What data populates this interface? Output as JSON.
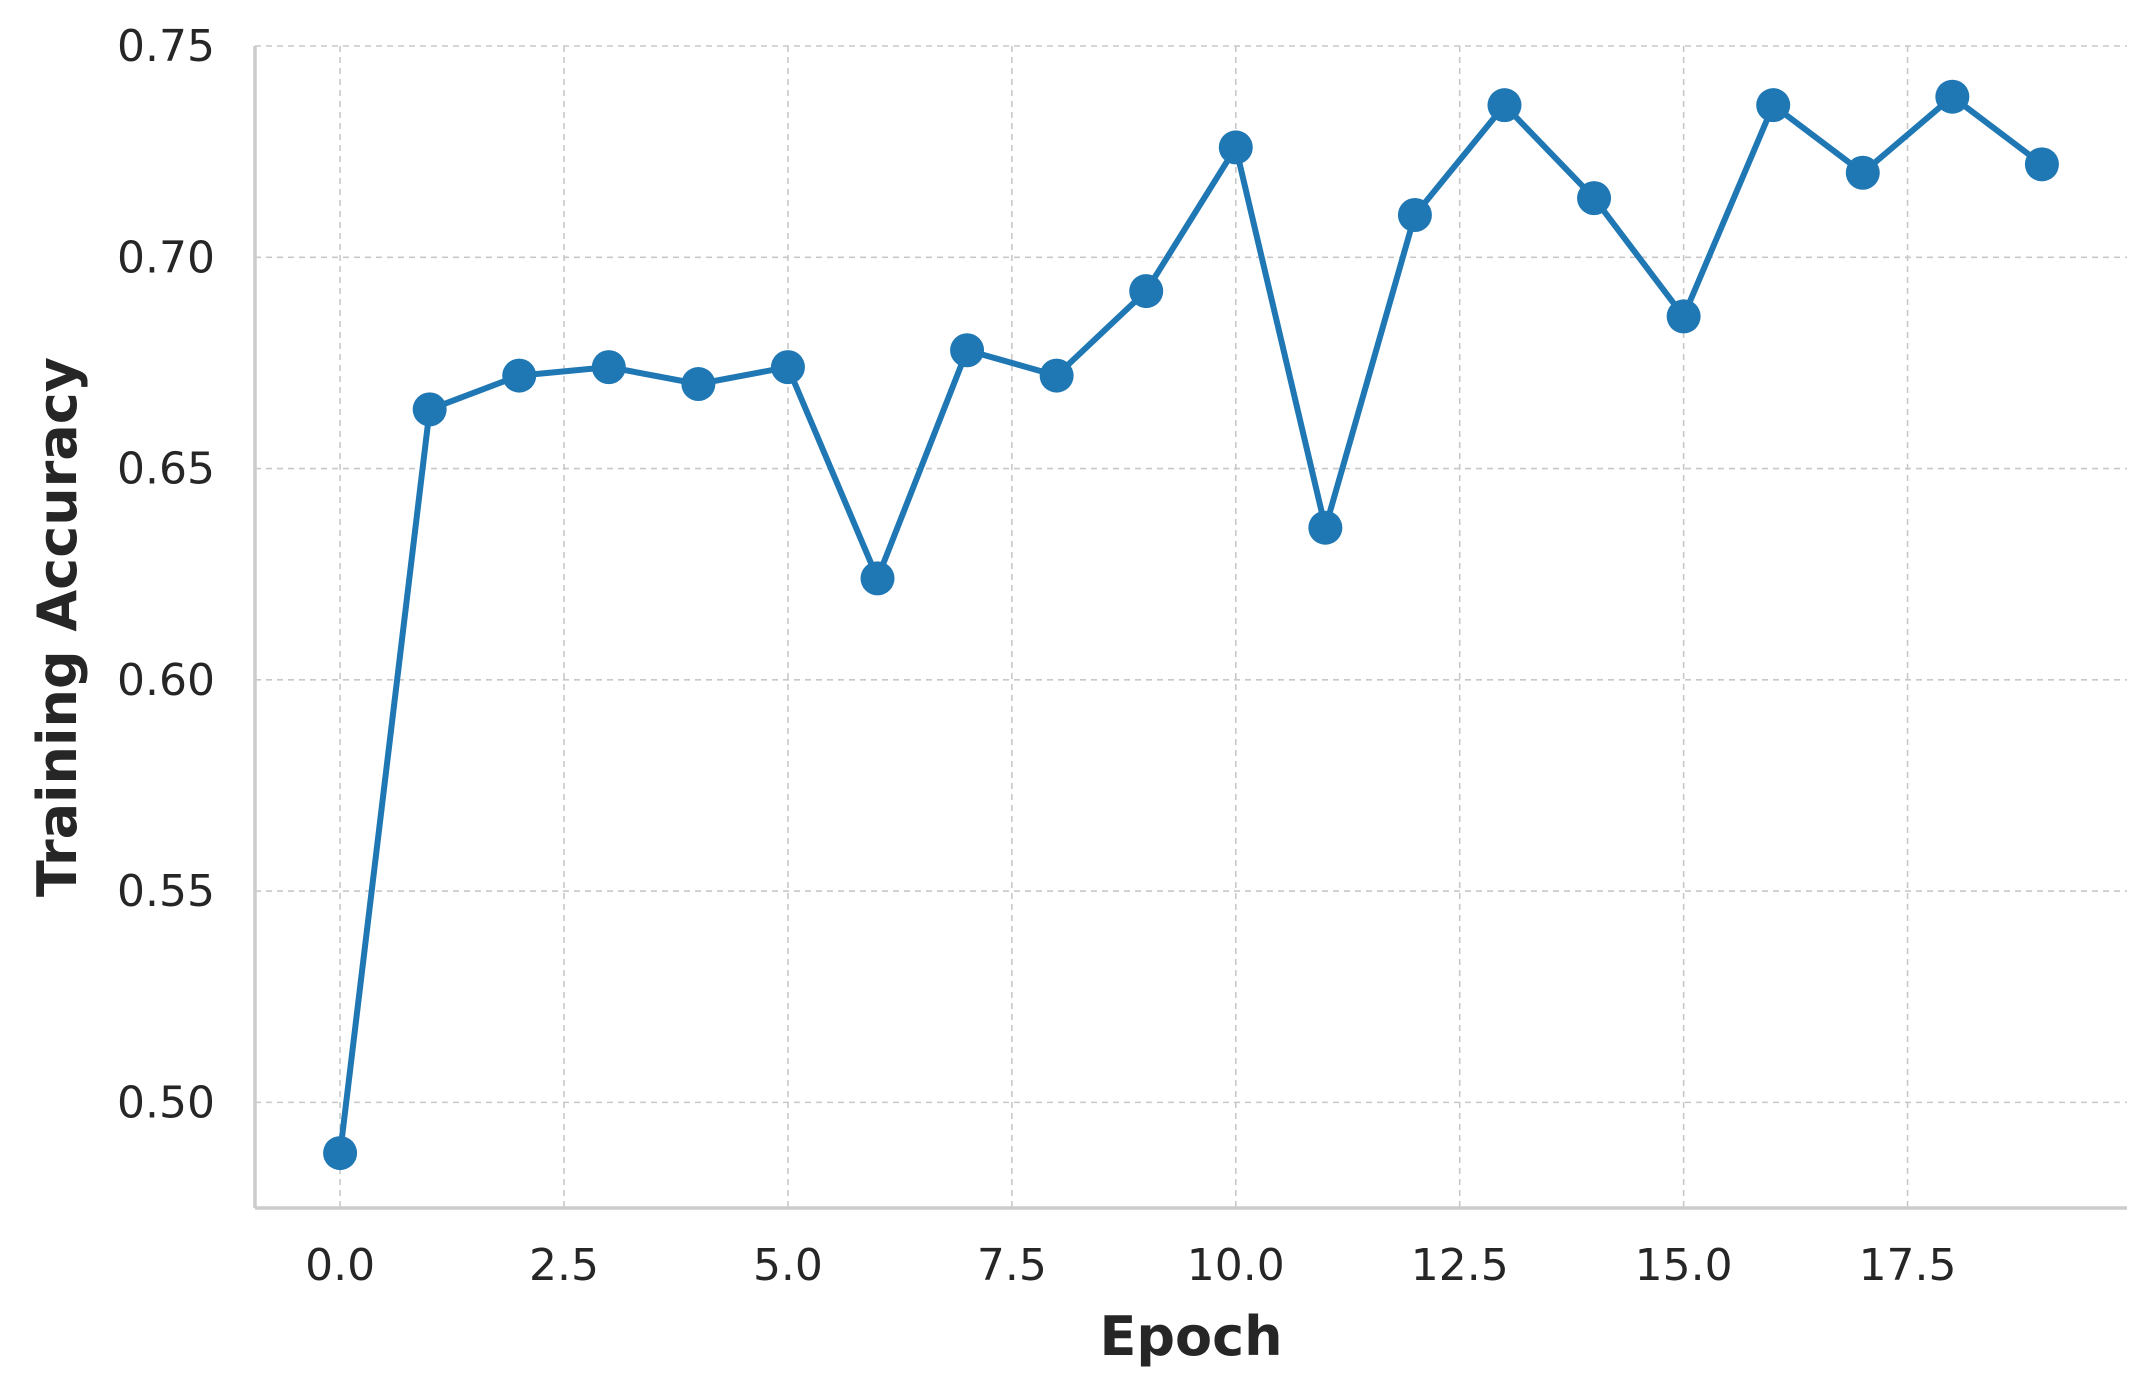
{
  "chart_data": {
    "type": "line",
    "title": "",
    "xlabel": "Epoch",
    "ylabel": "Training Accuracy",
    "xlim": [
      -0.95,
      19.95
    ],
    "ylim": [
      0.475,
      0.75
    ],
    "x_ticks": [
      0.0,
      2.5,
      5.0,
      7.5,
      10.0,
      12.5,
      15.0,
      17.5
    ],
    "x_tick_labels": [
      "0.0",
      "2.5",
      "5.0",
      "7.5",
      "10.0",
      "12.5",
      "15.0",
      "17.5"
    ],
    "y_ticks": [
      0.5,
      0.55,
      0.6,
      0.65,
      0.7,
      0.75
    ],
    "y_tick_labels": [
      "0.50",
      "0.55",
      "0.60",
      "0.65",
      "0.70",
      "0.75"
    ],
    "grid": true,
    "series": [
      {
        "color": "#1f77b4",
        "marker": "circle",
        "x": [
          0,
          1,
          2,
          3,
          4,
          5,
          6,
          7,
          8,
          9,
          10,
          11,
          12,
          13,
          14,
          15,
          16,
          17,
          18,
          19
        ],
        "values": [
          0.488,
          0.664,
          0.672,
          0.674,
          0.67,
          0.674,
          0.624,
          0.678,
          0.672,
          0.692,
          0.726,
          0.636,
          0.71,
          0.736,
          0.714,
          0.686,
          0.736,
          0.72,
          0.738,
          0.722
        ]
      }
    ]
  }
}
